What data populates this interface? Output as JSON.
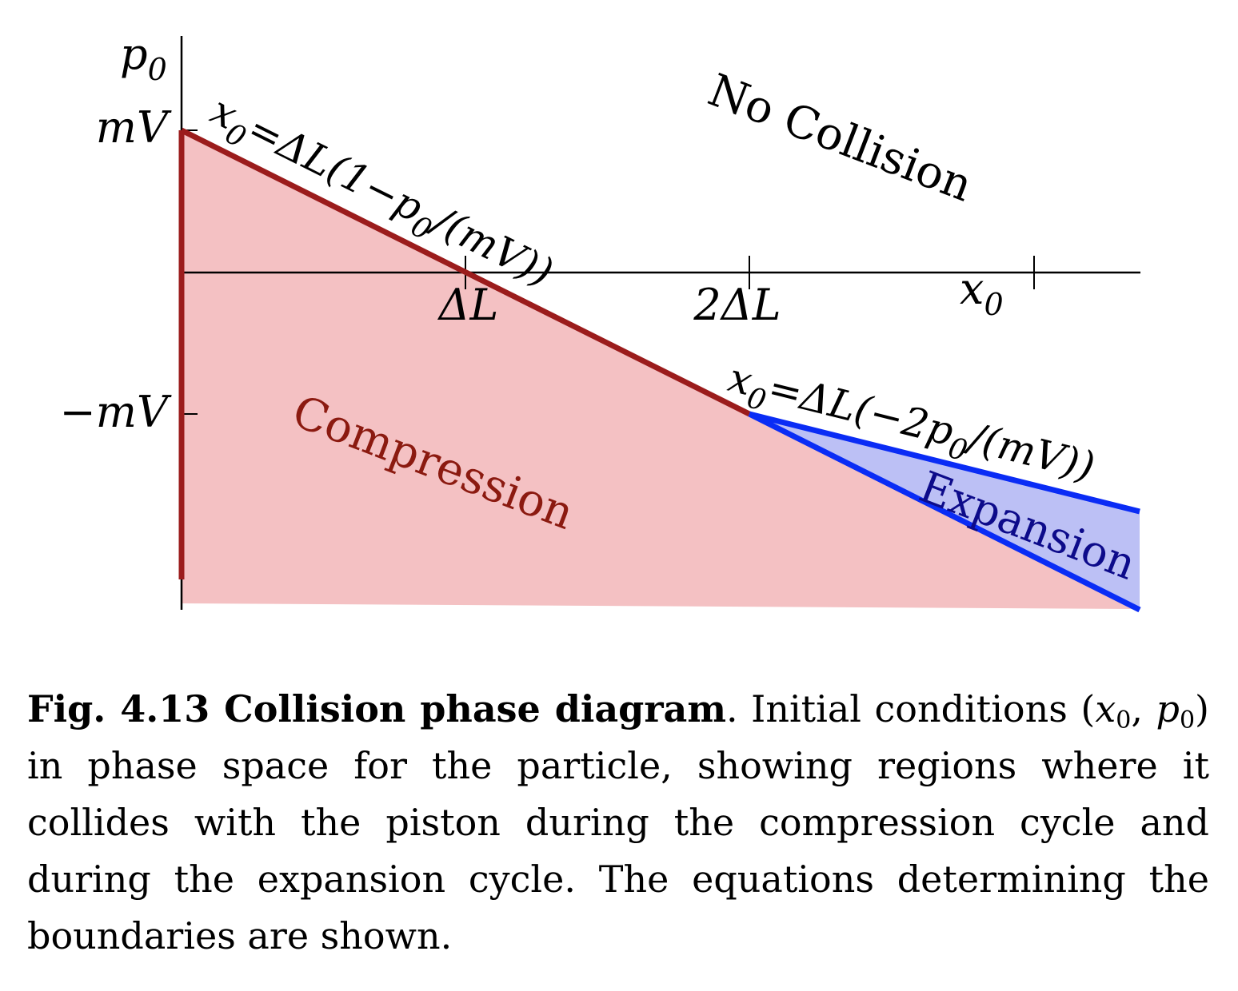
{
  "figure": {
    "colors": {
      "compression_fill": "#f4c1c3",
      "compression_line": "#9b1c1c",
      "compression_text": "#8b1a10",
      "expansion_fill": "#bcc0f5",
      "expansion_line": "#0a2cf5",
      "expansion_text": "#0d0b8a",
      "axis": "#000000"
    },
    "axis": {
      "x_label_var": "x",
      "x_label_sub": "0",
      "y_label_var": "p",
      "y_label_sub": "0"
    },
    "ticks": {
      "y_top": "mV",
      "y_bottom": "−mV",
      "x_1": "ΔL",
      "x_2": "2ΔL"
    },
    "regions": {
      "no_collision": "No Collision",
      "compression": "Compression",
      "expansion": "Expansion"
    },
    "equations": {
      "upper": {
        "lhs_var": "x",
        "lhs_sub": "0",
        "mid": "=ΔL(1−p",
        "p_sub": "0",
        "tail": "/(mV))"
      },
      "lower": {
        "lhs_var": "x",
        "lhs_sub": "0",
        "mid": "=ΔL(−2p",
        "p_sub": "0",
        "tail": "/(mV))"
      }
    }
  },
  "caption": {
    "label": "Fig. 4.13 Collision phase diagram",
    "text_1": ". Initial con­ditions (",
    "x_var": "x",
    "x_sub": "0",
    "comma": ", ",
    "p_var": "p",
    "p_sub": "0",
    "text_2": ") in phase space for the particle, show­ing regions where it collides with the piston during the compression cycle and during the expansion cycle. The equations determining the boundaries are shown."
  }
}
